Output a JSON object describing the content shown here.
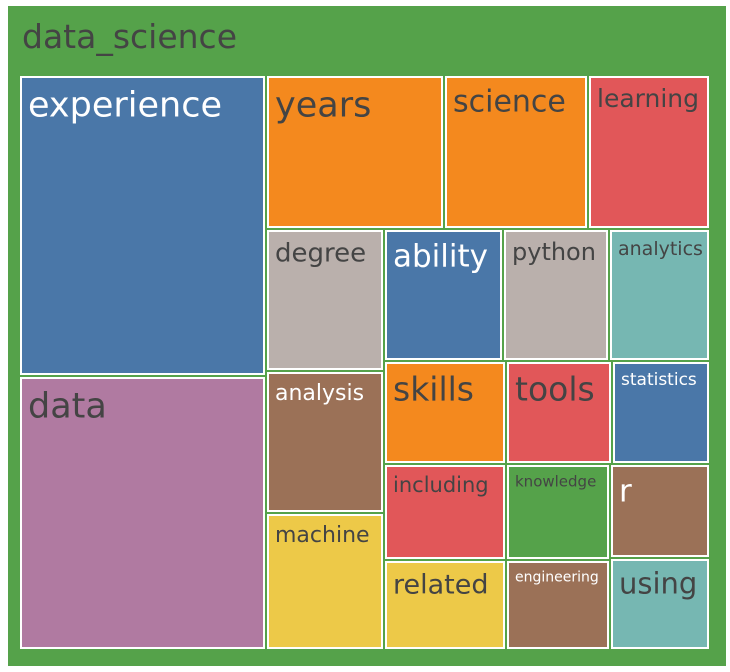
{
  "chart_data": {
    "type": "treemap",
    "root": "data_science",
    "root_color": "#55a24a",
    "items": [
      {
        "name": "experience",
        "value": 155,
        "color": "#4a77a8",
        "label_color": "#ffffff"
      },
      {
        "name": "data",
        "value": 140,
        "color": "#b07aa1",
        "label_color": "#444444"
      },
      {
        "name": "years",
        "value": 37,
        "color": "#f4891e",
        "label_color": "#444444"
      },
      {
        "name": "science",
        "value": 34,
        "color": "#f4891e",
        "label_color": "#444444"
      },
      {
        "name": "learning",
        "value": 30,
        "color": "#e15759",
        "label_color": "#444444"
      },
      {
        "name": "degree",
        "value": 25,
        "color": "#bab0ac",
        "label_color": "#444444"
      },
      {
        "name": "ability",
        "value": 22,
        "color": "#4a77a8",
        "label_color": "#ffffff"
      },
      {
        "name": "python",
        "value": 20,
        "color": "#bab0ac",
        "label_color": "#444444"
      },
      {
        "name": "analytics",
        "value": 18,
        "color": "#76b7b2",
        "label_color": "#444444"
      },
      {
        "name": "analysis",
        "value": 24,
        "color": "#9b7157",
        "label_color": "#ffffff"
      },
      {
        "name": "machine",
        "value": 22,
        "color": "#edc948",
        "label_color": "#444444"
      },
      {
        "name": "skills",
        "value": 17,
        "color": "#f4891e",
        "label_color": "#444444"
      },
      {
        "name": "tools",
        "value": 16,
        "color": "#e15759",
        "label_color": "#444444"
      },
      {
        "name": "statistics",
        "value": 14,
        "color": "#4a77a8",
        "label_color": "#ffffff"
      },
      {
        "name": "including",
        "value": 16,
        "color": "#e15759",
        "label_color": "#444444"
      },
      {
        "name": "knowledge",
        "value": 15,
        "color": "#55a24a",
        "label_color": "#444444"
      },
      {
        "name": "r",
        "value": 13,
        "color": "#9b7157",
        "label_color": "#ffffff"
      },
      {
        "name": "related",
        "value": 13,
        "color": "#edc948",
        "label_color": "#444444"
      },
      {
        "name": "engineering",
        "value": 12,
        "color": "#9b7157",
        "label_color": "#ffffff"
      },
      {
        "name": "using",
        "value": 12,
        "color": "#76b7b2",
        "label_color": "#444444"
      }
    ]
  }
}
